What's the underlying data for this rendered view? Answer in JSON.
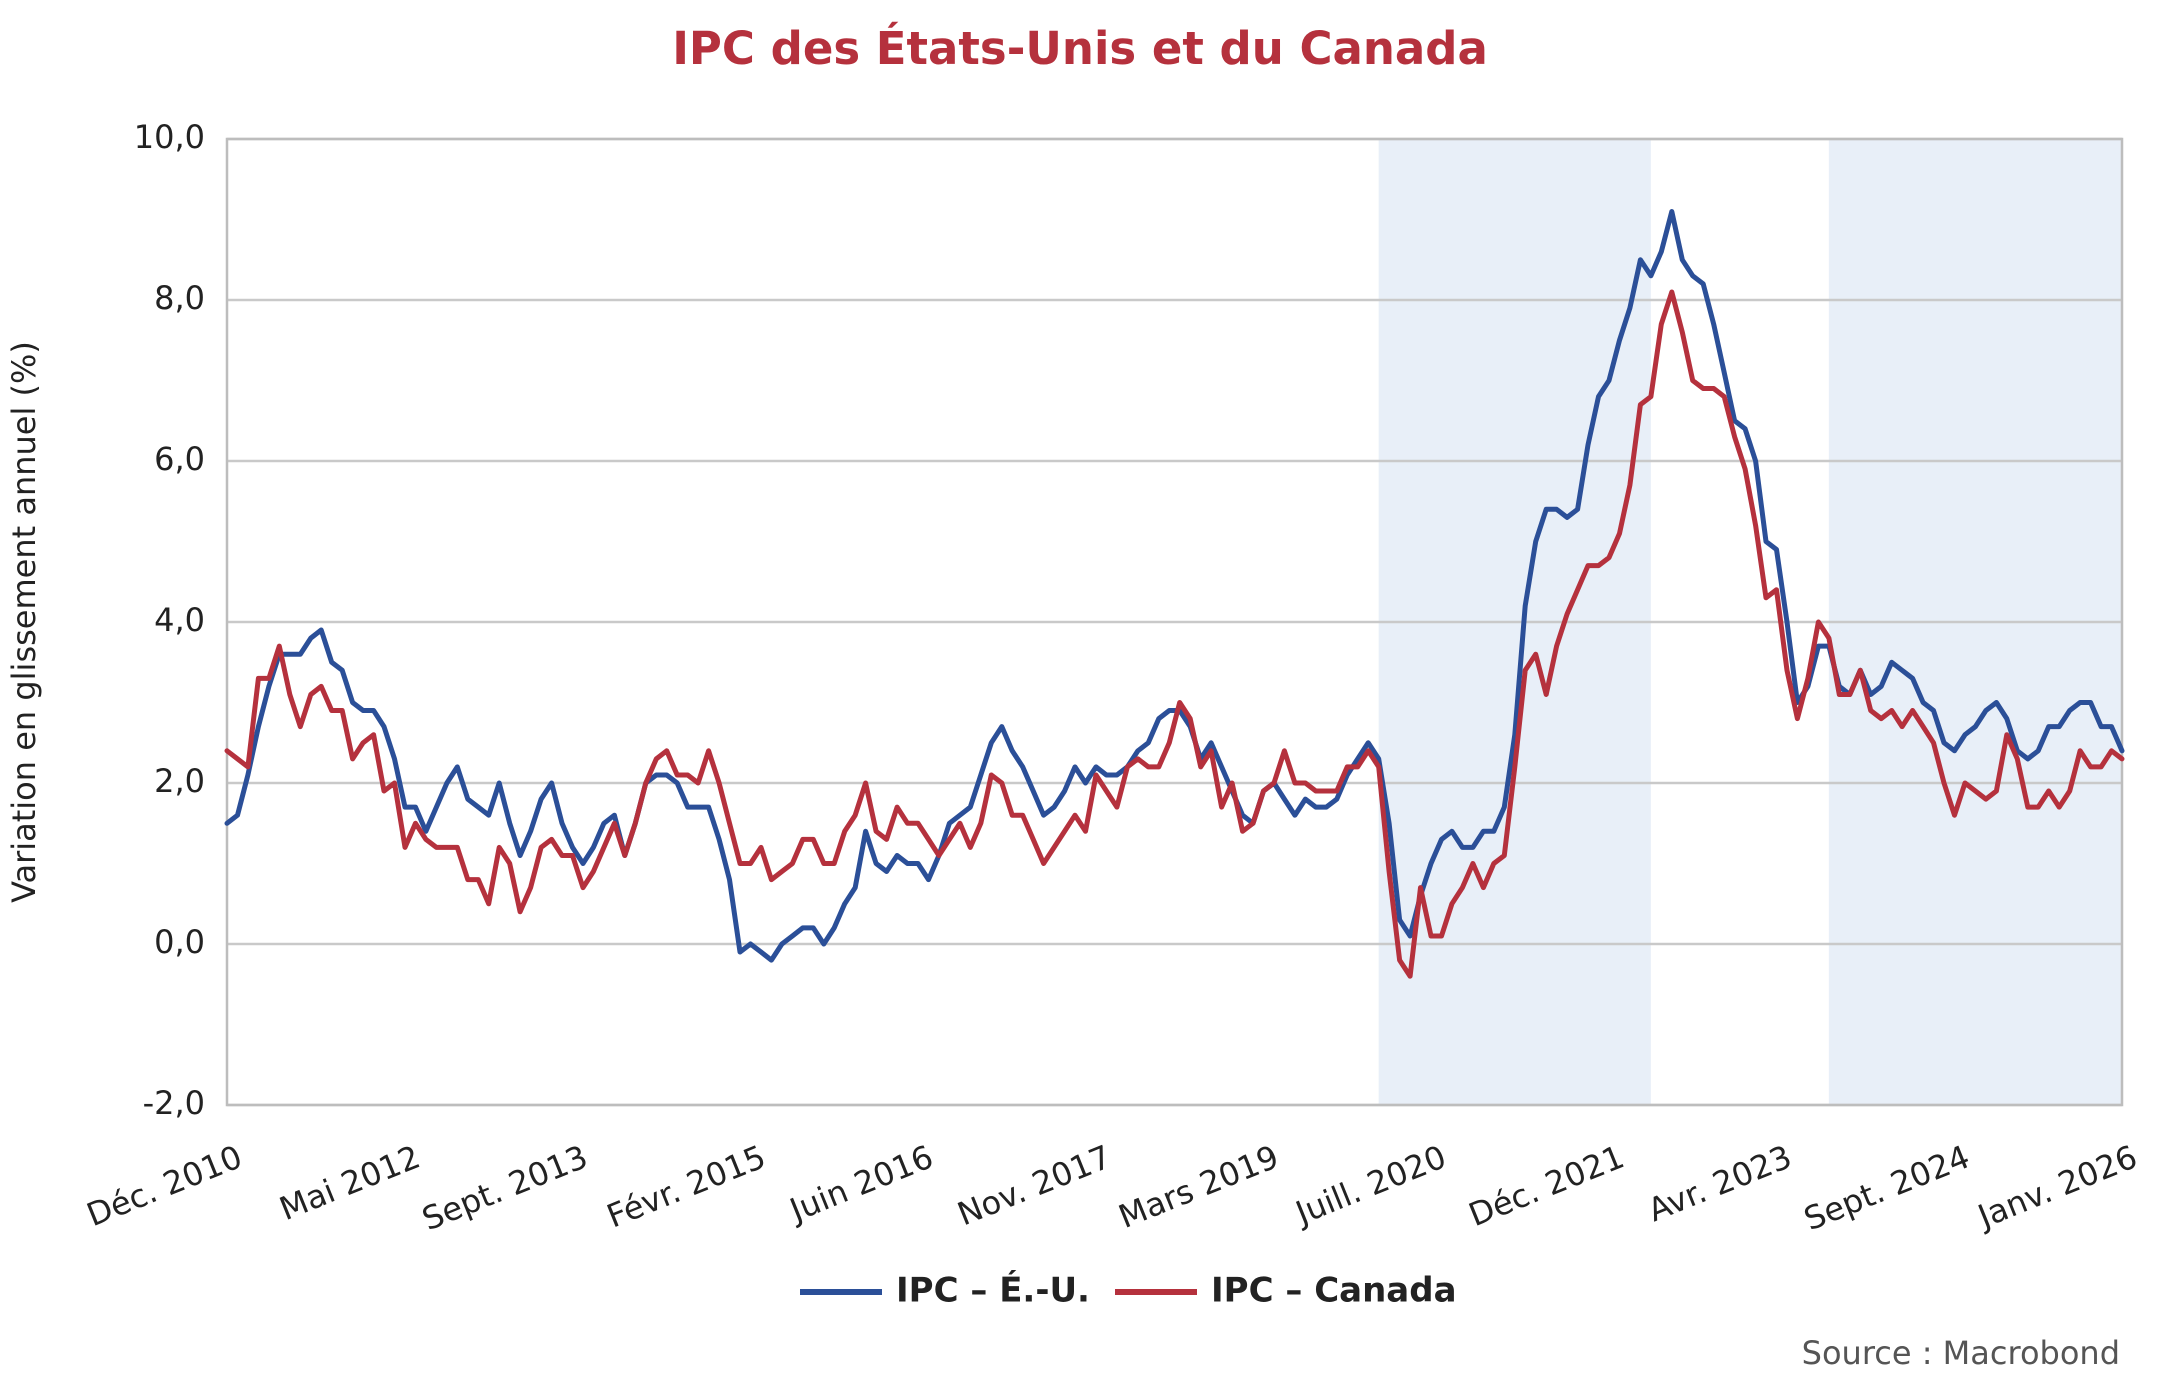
{
  "chart_data": {
    "type": "line",
    "title": "IPC des États-Unis et du Canada",
    "y_label": "Variation en glissement annuel (%)",
    "source": "Source : Macrobond",
    "categories": [
      "Déc. 2010",
      null,
      null,
      null,
      null,
      null,
      null,
      null,
      null,
      null,
      null,
      null,
      null,
      null,
      null,
      null,
      null,
      "Mai 2012",
      null,
      null,
      null,
      null,
      null,
      null,
      null,
      null,
      null,
      null,
      null,
      null,
      null,
      null,
      null,
      "Sept. 2013",
      null,
      null,
      null,
      null,
      null,
      null,
      null,
      null,
      null,
      null,
      null,
      null,
      null,
      null,
      null,
      null,
      "Févr. 2015",
      null,
      null,
      null,
      null,
      null,
      null,
      null,
      null,
      null,
      null,
      null,
      null,
      null,
      null,
      null,
      "Juin 2016",
      null,
      null,
      null,
      null,
      null,
      null,
      null,
      null,
      null,
      null,
      null,
      null,
      null,
      null,
      null,
      null,
      "Nov. 2017",
      null,
      null,
      null,
      null,
      null,
      null,
      null,
      null,
      null,
      null,
      null,
      null,
      null,
      null,
      null,
      "Mars 2019",
      null,
      null,
      null,
      null,
      null,
      null,
      null,
      null,
      null,
      null,
      null,
      null,
      null,
      null,
      null,
      "Juill. 2020",
      null,
      null,
      null,
      null,
      null,
      null,
      null,
      null,
      null,
      null,
      null,
      null,
      null,
      null,
      null,
      null,
      "Déc. 2021",
      null,
      null,
      null,
      null,
      null,
      null,
      null,
      null,
      null,
      null,
      null,
      null,
      null,
      null,
      null,
      "Avr. 2023",
      null,
      null,
      null,
      null,
      null,
      null,
      null,
      null,
      null,
      null,
      null,
      null,
      null,
      null,
      null,
      null,
      "Sept. 2024",
      null,
      null,
      null,
      null,
      null,
      null,
      null,
      null,
      null,
      null,
      null,
      null,
      null,
      null,
      null,
      "Janv. 2026"
    ],
    "series": [
      {
        "name": "IPC – É.-U.",
        "color": "#2b4f98",
        "values": [
          1.5,
          1.6,
          2.1,
          2.7,
          3.2,
          3.6,
          3.6,
          3.6,
          3.8,
          3.9,
          3.5,
          3.4,
          3.0,
          2.9,
          2.9,
          2.7,
          2.3,
          1.7,
          1.7,
          1.4,
          1.7,
          2.0,
          2.2,
          1.8,
          1.7,
          1.6,
          2.0,
          1.5,
          1.1,
          1.4,
          1.8,
          2.0,
          1.5,
          1.2,
          1.0,
          1.2,
          1.5,
          1.6,
          1.1,
          1.5,
          2.0,
          2.1,
          2.1,
          2.0,
          1.7,
          1.7,
          1.7,
          1.3,
          0.8,
          -0.1,
          0.0,
          -0.1,
          -0.2,
          0.0,
          0.1,
          0.2,
          0.2,
          0.0,
          0.2,
          0.5,
          0.7,
          1.4,
          1.0,
          0.9,
          1.1,
          1.0,
          1.0,
          0.8,
          1.1,
          1.5,
          1.6,
          1.7,
          2.1,
          2.5,
          2.7,
          2.4,
          2.2,
          1.9,
          1.6,
          1.7,
          1.9,
          2.2,
          2.0,
          2.2,
          2.1,
          2.1,
          2.2,
          2.4,
          2.5,
          2.8,
          2.9,
          2.9,
          2.7,
          2.3,
          2.5,
          2.2,
          1.9,
          1.6,
          1.5,
          1.9,
          2.0,
          1.8,
          1.6,
          1.8,
          1.7,
          1.7,
          1.8,
          2.1,
          2.3,
          2.5,
          2.3,
          1.5,
          0.3,
          0.1,
          0.6,
          1.0,
          1.3,
          1.4,
          1.2,
          1.2,
          1.4,
          1.4,
          1.7,
          2.6,
          4.2,
          5.0,
          5.4,
          5.4,
          5.3,
          5.4,
          6.2,
          6.8,
          7.0,
          7.5,
          7.9,
          8.5,
          8.3,
          8.6,
          9.1,
          8.5,
          8.3,
          8.2,
          7.7,
          7.1,
          6.5,
          6.4,
          6.0,
          5.0,
          4.9,
          4.0,
          3.0,
          3.2,
          3.7,
          3.7,
          3.2,
          3.1,
          3.4,
          3.1,
          3.2,
          3.5,
          3.4,
          3.3,
          3.0,
          2.9,
          2.5,
          2.4,
          2.6,
          2.7,
          2.9,
          3.0,
          2.8,
          2.4,
          2.3,
          2.4,
          2.7,
          2.7,
          2.9,
          3.0,
          3.0,
          2.7,
          2.7,
          2.4
        ]
      },
      {
        "name": "IPC – Canada",
        "color": "#b5313d",
        "values": [
          2.4,
          2.3,
          2.2,
          3.3,
          3.3,
          3.7,
          3.1,
          2.7,
          3.1,
          3.2,
          2.9,
          2.9,
          2.3,
          2.5,
          2.6,
          1.9,
          2.0,
          1.2,
          1.5,
          1.3,
          1.2,
          1.2,
          1.2,
          0.8,
          0.8,
          0.5,
          1.2,
          1.0,
          0.4,
          0.7,
          1.2,
          1.3,
          1.1,
          1.1,
          0.7,
          0.9,
          1.2,
          1.5,
          1.1,
          1.5,
          2.0,
          2.3,
          2.4,
          2.1,
          2.1,
          2.0,
          2.4,
          2.0,
          1.5,
          1.0,
          1.0,
          1.2,
          0.8,
          0.9,
          1.0,
          1.3,
          1.3,
          1.0,
          1.0,
          1.4,
          1.6,
          2.0,
          1.4,
          1.3,
          1.7,
          1.5,
          1.5,
          1.3,
          1.1,
          1.3,
          1.5,
          1.2,
          1.5,
          2.1,
          2.0,
          1.6,
          1.6,
          1.3,
          1.0,
          1.2,
          1.4,
          1.6,
          1.4,
          2.1,
          1.9,
          1.7,
          2.2,
          2.3,
          2.2,
          2.2,
          2.5,
          3.0,
          2.8,
          2.2,
          2.4,
          1.7,
          2.0,
          1.4,
          1.5,
          1.9,
          2.0,
          2.4,
          2.0,
          2.0,
          1.9,
          1.9,
          1.9,
          2.2,
          2.2,
          2.4,
          2.2,
          0.9,
          -0.2,
          -0.4,
          0.7,
          0.1,
          0.1,
          0.5,
          0.7,
          1.0,
          0.7,
          1.0,
          1.1,
          2.2,
          3.4,
          3.6,
          3.1,
          3.7,
          4.1,
          4.4,
          4.7,
          4.7,
          4.8,
          5.1,
          5.7,
          6.7,
          6.8,
          7.7,
          8.1,
          7.6,
          7.0,
          6.9,
          6.9,
          6.8,
          6.3,
          5.9,
          5.2,
          4.3,
          4.4,
          3.4,
          2.8,
          3.3,
          4.0,
          3.8,
          3.1,
          3.1,
          3.4,
          2.9,
          2.8,
          2.9,
          2.7,
          2.9,
          2.7,
          2.5,
          2.0,
          1.6,
          2.0,
          1.9,
          1.8,
          1.9,
          2.6,
          2.3,
          1.7,
          1.7,
          1.9,
          1.7,
          1.9,
          2.4,
          2.2,
          2.2,
          2.4,
          2.3
        ]
      }
    ],
    "shaded_ranges": [
      [
        110,
        136
      ],
      [
        153,
        181
      ]
    ],
    "shade_color": "#e8eff8",
    "ylim": [
      -2,
      10
    ],
    "yticks": [
      {
        "value": -2,
        "label": "-2,0"
      },
      {
        "value": 0,
        "label": "0,0"
      },
      {
        "value": 2,
        "label": "2,0"
      },
      {
        "value": 4,
        "label": "4,0"
      },
      {
        "value": 6,
        "label": "6,0"
      },
      {
        "value": 8,
        "label": "8,0"
      },
      {
        "value": 10,
        "label": "10,0"
      }
    ],
    "grid": true
  }
}
